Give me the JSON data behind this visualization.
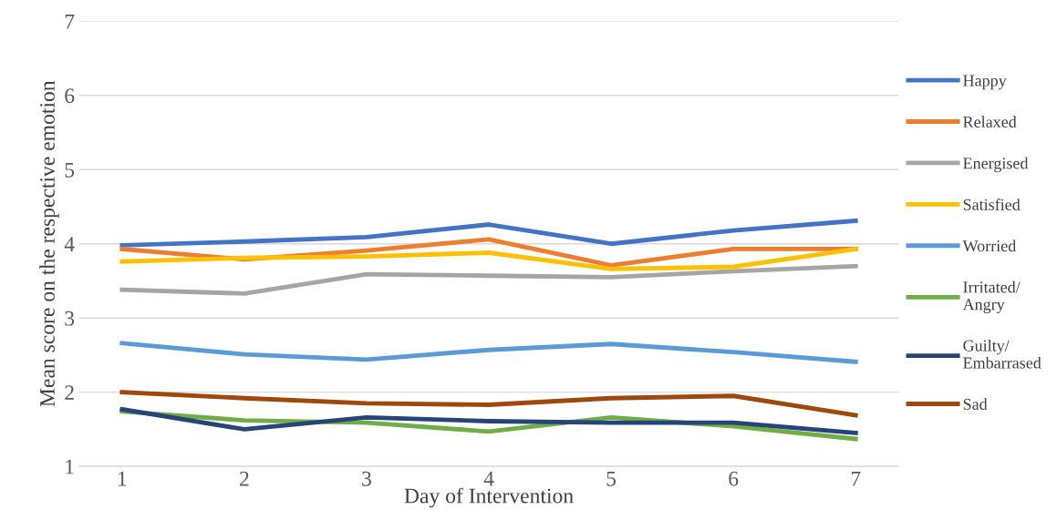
{
  "chart_data": {
    "type": "line",
    "xlabel": "Day of Intervention",
    "ylabel": "Mean score on the respective emotion",
    "categories": [
      "1",
      "2",
      "3",
      "4",
      "5",
      "6",
      "7"
    ],
    "ylim": [
      1,
      7
    ],
    "yticks": [
      1,
      2,
      3,
      4,
      5,
      6,
      7
    ],
    "grid": "y",
    "legend": "right",
    "marker": "none",
    "line_style": "solid",
    "series": [
      {
        "name": "Happy",
        "color": "#4472c4",
        "values": [
          3.98,
          4.03,
          4.09,
          4.26,
          4.0,
          4.18,
          4.31
        ]
      },
      {
        "name": "Relaxed",
        "color": "#ed7d31",
        "values": [
          3.93,
          3.79,
          3.91,
          4.06,
          3.71,
          3.93,
          3.93
        ]
      },
      {
        "name": "Energised",
        "color": "#a5a5a5",
        "values": [
          3.38,
          3.33,
          3.59,
          3.57,
          3.55,
          3.63,
          3.7
        ]
      },
      {
        "name": "Satisfied",
        "color": "#ffc000",
        "values": [
          3.76,
          3.81,
          3.83,
          3.88,
          3.66,
          3.69,
          3.93
        ]
      },
      {
        "name": "Worried",
        "color": "#5b9bd5",
        "values": [
          2.66,
          2.51,
          2.44,
          2.57,
          2.65,
          2.54,
          2.41
        ]
      },
      {
        "name": "Irritated/\nAngry",
        "color": "#70ad47",
        "values": [
          1.74,
          1.62,
          1.59,
          1.47,
          1.66,
          1.54,
          1.37
        ]
      },
      {
        "name": "Guilty/\nEmbarrased",
        "color": "#264478",
        "values": [
          1.77,
          1.5,
          1.66,
          1.61,
          1.59,
          1.59,
          1.45
        ]
      },
      {
        "name": "Sad",
        "color": "#9e480e",
        "values": [
          2.0,
          1.92,
          1.85,
          1.83,
          1.92,
          1.95,
          1.69
        ]
      }
    ]
  }
}
